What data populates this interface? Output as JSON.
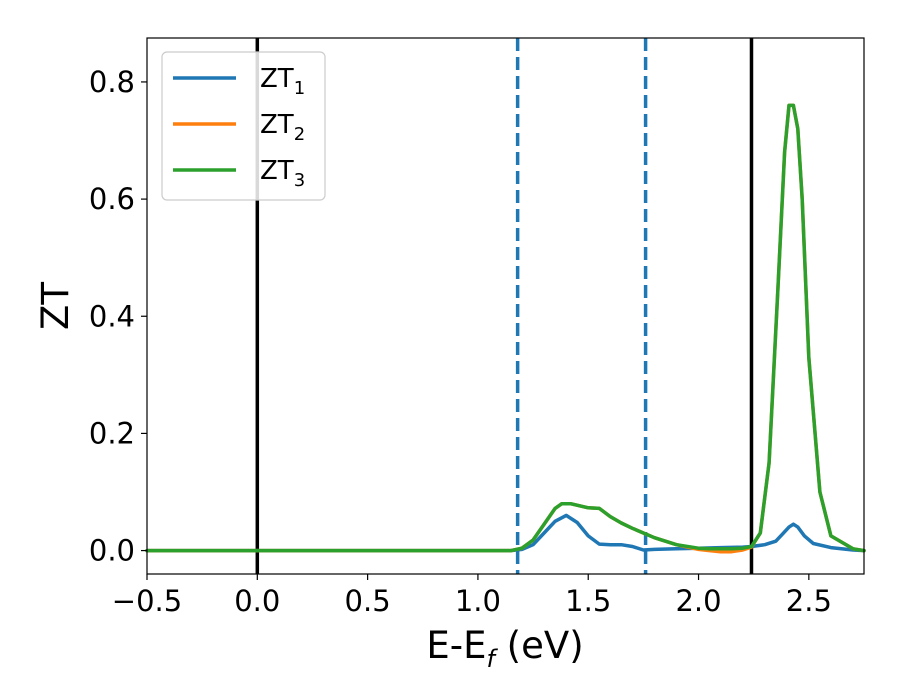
{
  "chart_data": {
    "type": "line",
    "xlabel": {
      "base": "E-E",
      "sub": "f",
      "rest": " (eV)"
    },
    "ylabel": "ZT",
    "xlim": [
      -0.5,
      2.75
    ],
    "ylim": [
      -0.04,
      0.875
    ],
    "xticks": [
      -0.5,
      0.0,
      0.5,
      1.0,
      1.5,
      2.0,
      2.5
    ],
    "xtick_labels": [
      "−0.5",
      "0.0",
      "0.5",
      "1.0",
      "1.5",
      "2.0",
      "2.5"
    ],
    "yticks": [
      0.0,
      0.2,
      0.4,
      0.6,
      0.8
    ],
    "ytick_labels": [
      "0.0",
      "0.2",
      "0.4",
      "0.6",
      "0.8"
    ],
    "grid": false,
    "legend_position": "upper-left",
    "series": [
      {
        "name": "ZT1",
        "base": "ZT",
        "sub": "1",
        "color": "#1f77b4",
        "x": [
          -0.5,
          1.15,
          1.2,
          1.25,
          1.3,
          1.35,
          1.4,
          1.45,
          1.5,
          1.55,
          1.6,
          1.65,
          1.7,
          1.75,
          1.8,
          1.9,
          2.0,
          2.1,
          2.2,
          2.24,
          2.3,
          2.35,
          2.38,
          2.41,
          2.43,
          2.45,
          2.48,
          2.52,
          2.6,
          2.7,
          2.75
        ],
        "y": [
          0.0,
          0.0,
          0.002,
          0.01,
          0.03,
          0.05,
          0.06,
          0.048,
          0.025,
          0.011,
          0.01,
          0.01,
          0.007,
          0.001,
          0.002,
          0.003,
          0.004,
          0.005,
          0.006,
          0.007,
          0.01,
          0.016,
          0.028,
          0.04,
          0.045,
          0.04,
          0.025,
          0.012,
          0.005,
          0.001,
          0.0
        ]
      },
      {
        "name": "ZT2",
        "base": "ZT",
        "sub": "2",
        "color": "#ff7f0e",
        "x": [
          -0.5,
          1.15,
          1.2,
          1.25,
          1.3,
          1.35,
          1.38,
          1.42,
          1.5,
          1.55,
          1.6,
          1.65,
          1.7,
          1.75,
          1.8,
          1.9,
          2.0,
          2.05,
          2.1,
          2.15,
          2.2,
          2.24,
          2.28,
          2.32,
          2.36,
          2.39,
          2.41,
          2.43,
          2.45,
          2.47,
          2.5,
          2.55,
          2.6,
          2.7,
          2.75
        ],
        "y": [
          0.0,
          0.0,
          0.004,
          0.018,
          0.045,
          0.072,
          0.08,
          0.08,
          0.073,
          0.072,
          0.058,
          0.047,
          0.038,
          0.03,
          0.022,
          0.01,
          0.002,
          0.0,
          -0.002,
          -0.002,
          0.001,
          0.006,
          0.03,
          0.15,
          0.45,
          0.68,
          0.76,
          0.76,
          0.72,
          0.6,
          0.33,
          0.1,
          0.025,
          0.003,
          0.0
        ]
      },
      {
        "name": "ZT3",
        "base": "ZT",
        "sub": "3",
        "color": "#2ca02c",
        "x": [
          -0.5,
          1.15,
          1.2,
          1.25,
          1.3,
          1.35,
          1.38,
          1.42,
          1.5,
          1.55,
          1.6,
          1.65,
          1.7,
          1.75,
          1.8,
          1.9,
          2.0,
          2.05,
          2.1,
          2.15,
          2.2,
          2.24,
          2.28,
          2.32,
          2.36,
          2.39,
          2.41,
          2.43,
          2.45,
          2.47,
          2.5,
          2.55,
          2.6,
          2.7,
          2.75
        ],
        "y": [
          0.0,
          0.0,
          0.004,
          0.018,
          0.045,
          0.072,
          0.08,
          0.08,
          0.073,
          0.072,
          0.058,
          0.047,
          0.038,
          0.03,
          0.022,
          0.01,
          0.004,
          0.003,
          0.003,
          0.003,
          0.004,
          0.007,
          0.03,
          0.15,
          0.45,
          0.68,
          0.76,
          0.76,
          0.72,
          0.6,
          0.33,
          0.1,
          0.025,
          0.003,
          0.0
        ]
      }
    ],
    "vertical_lines": [
      {
        "x": 0.0,
        "style": "solid",
        "color": "#000000"
      },
      {
        "x": 1.18,
        "style": "dashed",
        "color": "#1f77b4"
      },
      {
        "x": 1.76,
        "style": "dashed",
        "color": "#1f77b4"
      },
      {
        "x": 2.24,
        "style": "solid",
        "color": "#000000"
      }
    ]
  }
}
